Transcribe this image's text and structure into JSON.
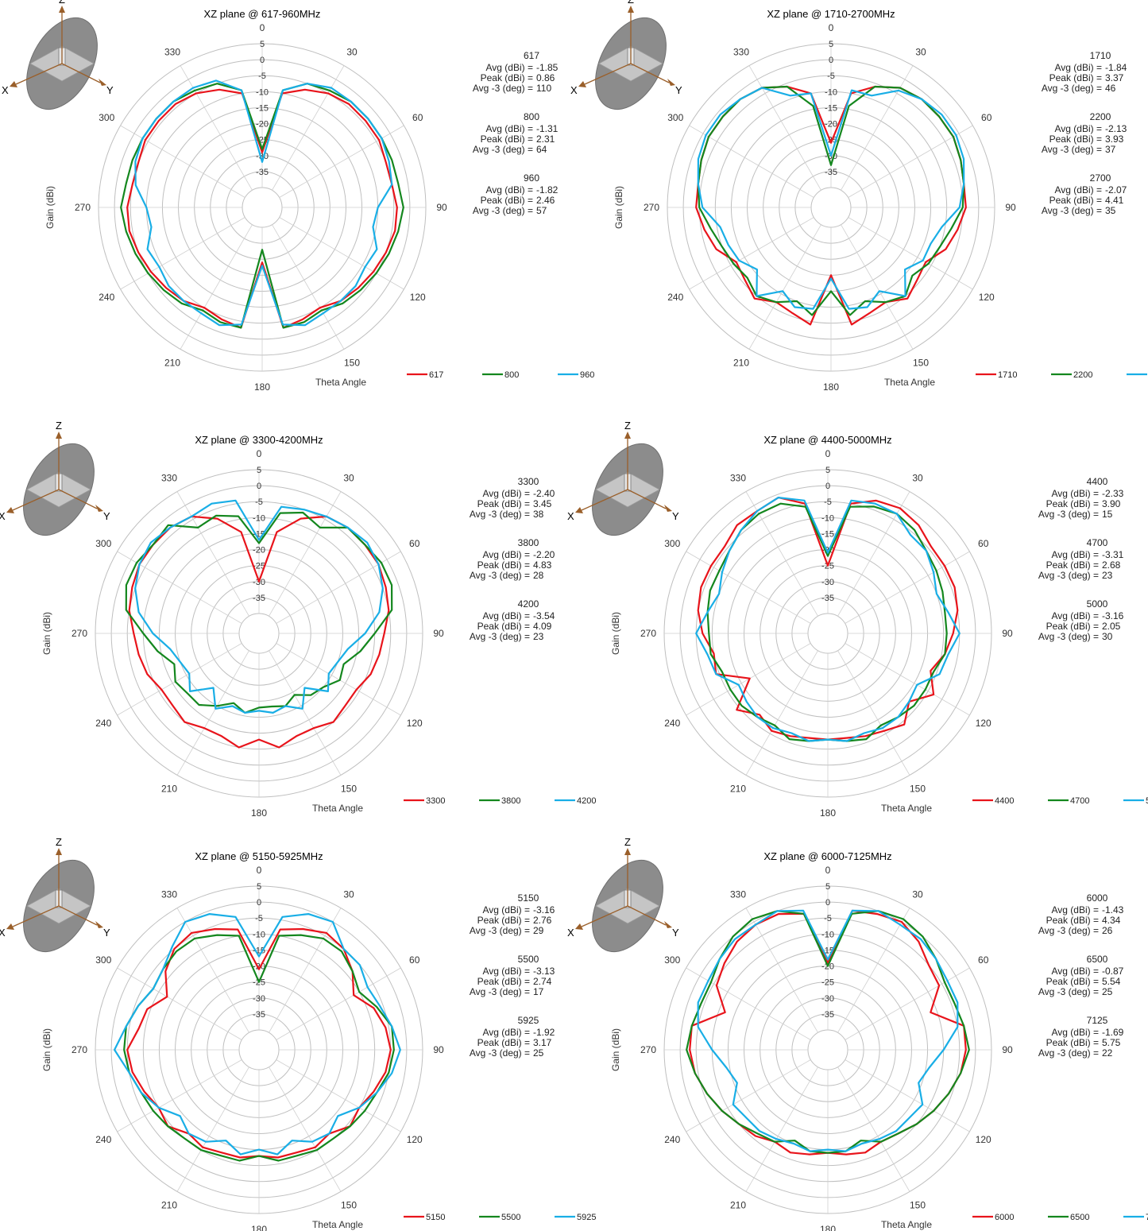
{
  "colors": {
    "series": [
      "#e8141b",
      "#14871e",
      "#19aee6"
    ],
    "grid": "#bfbfbf"
  },
  "common": {
    "ylabel": "Gain  (dBi)",
    "xlabel": "Theta  Angle",
    "radial_ticks": [
      "5",
      "0",
      "-5",
      "-10",
      "-15",
      "-20",
      "-25",
      "-30",
      "-35"
    ],
    "angle_labels": [
      "0",
      "30",
      "60",
      "90",
      "120",
      "150",
      "180",
      "210",
      "240",
      "270",
      "300",
      "330"
    ],
    "stat_labels": [
      "Avg (dBi) =",
      "Peak (dBi) =",
      "Avg -3 (deg) ="
    ],
    "axis_icon_labels": [
      "Z",
      "X",
      "Y"
    ],
    "icon": "xz-plane-orientation-icon"
  },
  "chart_data": [
    {
      "type": "polar-line",
      "title": "XZ plane @ 617-960MHz",
      "rlim": [
        -40,
        5
      ],
      "theta_step_deg": 10,
      "series": [
        {
          "name": "617",
          "stats": [
            "-1.85",
            "0.86",
            "110"
          ],
          "values": [
            -29,
            -10,
            -7,
            -5,
            -4,
            -4,
            -4,
            -5,
            -5,
            -4,
            -4,
            -5,
            -6,
            -7,
            -8,
            -10,
            -9,
            -8,
            -29,
            -8,
            -9,
            -10,
            -8,
            -7,
            -6,
            -5,
            -4,
            -4,
            -5,
            -5,
            -4,
            -4,
            -4,
            -5,
            -7,
            -10
          ]
        },
        {
          "name": "800",
          "stats": [
            "-1.31",
            "2.31",
            "64"
          ],
          "values": [
            -28,
            -9,
            -5,
            -4,
            -3,
            -3,
            -3,
            -3,
            -3,
            -2,
            -3,
            -4,
            -5,
            -6,
            -7,
            -9,
            -8,
            -8,
            -33,
            -8,
            -8,
            -9,
            -7,
            -6,
            -5,
            -4,
            -3,
            -2,
            -3,
            -3,
            -3,
            -3,
            -3,
            -4,
            -5,
            -9
          ]
        },
        {
          "name": "960",
          "stats": [
            "-1.82",
            "2.46",
            "57"
          ],
          "values": [
            -32,
            -9,
            -5,
            -3,
            -3,
            -3,
            -3,
            -4,
            -5,
            -10,
            -11,
            -8,
            -9,
            -8,
            -8,
            -8,
            -7,
            -9,
            -28,
            -9,
            -7,
            -8,
            -8,
            -8,
            -9,
            -8,
            -11,
            -10,
            -6,
            -4,
            -3,
            -3,
            -3,
            -3,
            -4,
            -9
          ]
        }
      ]
    },
    {
      "type": "polar-line",
      "title": "XZ plane @ 1710-2700MHz",
      "rlim": [
        -40,
        5
      ],
      "theta_step_deg": 10,
      "series": [
        {
          "name": "1710",
          "stats": [
            "-1.84",
            "3.37",
            "46"
          ],
          "values": [
            -26,
            -10,
            -6,
            -3,
            -2,
            -2,
            -2,
            -3,
            -4,
            -4,
            -6,
            -8,
            -12,
            -11,
            -9,
            -12,
            -11,
            -9,
            -25,
            -9,
            -11,
            -12,
            -9,
            -11,
            -12,
            -8,
            -6,
            -4,
            -4,
            -3,
            -2,
            -2,
            -2,
            -3,
            -6,
            -10
          ]
        },
        {
          "name": "2200",
          "stats": [
            "-2.13",
            "3.93",
            "37"
          ],
          "values": [
            -33,
            -14,
            -6,
            -3,
            -2,
            -2,
            -2,
            -3,
            -4,
            -5,
            -8,
            -10,
            -11,
            -13,
            -10,
            -12,
            -15,
            -12,
            -20,
            -12,
            -15,
            -12,
            -10,
            -12,
            -11,
            -10,
            -8,
            -5,
            -4,
            -3,
            -2,
            -2,
            -2,
            -3,
            -6,
            -14
          ]
        },
        {
          "name": "2700",
          "stats": [
            "-2.07",
            "4.41",
            "35"
          ],
          "values": [
            -30,
            -9,
            -9,
            -4,
            -2,
            -1,
            -1,
            -2,
            -4,
            -6,
            -11,
            -13,
            -13,
            -16,
            -10,
            -16,
            -13,
            -14,
            -24,
            -14,
            -13,
            -16,
            -10,
            -16,
            -13,
            -12,
            -11,
            -6,
            -4,
            -2,
            -1,
            -1,
            -2,
            -3,
            -9,
            -10
          ]
        }
      ]
    },
    {
      "type": "polar-line",
      "title": "XZ plane @ 3300-4200MHz",
      "rlim": [
        -40,
        5
      ],
      "theta_step_deg": 10,
      "series": [
        {
          "name": "3300",
          "stats": [
            "-2.40",
            "3.45",
            "38"
          ],
          "values": [
            -30,
            -14,
            -8,
            -4,
            -3,
            -3,
            -3,
            -4,
            -5,
            -7,
            -8,
            -9,
            -11,
            -11,
            -10,
            -12,
            -12,
            -10,
            -13,
            -10,
            -12,
            -12,
            -10,
            -11,
            -11,
            -9,
            -8,
            -7,
            -5,
            -4,
            -3,
            -3,
            -3,
            -4,
            -8,
            -14
          ]
        },
        {
          "name": "3800",
          "stats": [
            "-2.20",
            "4.83",
            "28"
          ],
          "values": [
            -18,
            -8,
            -6,
            -8,
            -3,
            -3,
            -2,
            -2,
            -4,
            -10,
            -14,
            -18,
            -17,
            -20,
            -21,
            -24,
            -22,
            -23,
            -23,
            -21,
            -23,
            -20,
            -17,
            -17,
            -16,
            -18,
            -14,
            -10,
            -4,
            -2,
            -2,
            -3,
            -2,
            -8,
            -7,
            -9
          ]
        },
        {
          "name": "4200",
          "stats": [
            "-3.54",
            "4.09",
            "23"
          ],
          "values": [
            -17,
            -6,
            -5,
            -4,
            -3,
            -2,
            -3,
            -5,
            -8,
            -13,
            -18,
            -20,
            -21,
            -18,
            -24,
            -19,
            -22,
            -21,
            -22,
            -21,
            -22,
            -19,
            -24,
            -18,
            -21,
            -20,
            -18,
            -13,
            -8,
            -5,
            -3,
            -2,
            -3,
            -4,
            -3,
            -4
          ]
        }
      ]
    },
    {
      "type": "polar-line",
      "title": "XZ plane @ 4400-5000MHz",
      "rlim": [
        -40,
        5
      ],
      "theta_step_deg": 10,
      "series": [
        {
          "name": "4400",
          "stats": [
            "-2.33",
            "3.90",
            "15"
          ],
          "values": [
            -25,
            -5,
            -2,
            -1,
            -2,
            -4,
            -4,
            -4,
            -5,
            -7,
            -9,
            -12,
            -8,
            -13,
            -9,
            -11,
            -12,
            -13,
            -13,
            -13,
            -12,
            -11,
            -13,
            -9,
            -18,
            -9,
            -10,
            -7,
            -5,
            -4,
            -4,
            -4,
            -2,
            -2,
            -1,
            -5
          ]
        },
        {
          "name": "4700",
          "stats": [
            "-3.31",
            "2.68",
            "23"
          ],
          "values": [
            -22,
            -6,
            -4,
            -3,
            -4,
            -6,
            -7,
            -8,
            -9,
            -9,
            -9,
            -11,
            -11,
            -11,
            -12,
            -13,
            -11,
            -12,
            -13,
            -12,
            -11,
            -13,
            -12,
            -11,
            -11,
            -11,
            -9,
            -9,
            -8,
            -7,
            -7,
            -6,
            -4,
            -3,
            -3,
            -6
          ]
        },
        {
          "name": "5000",
          "stats": [
            "-3.16",
            "2.05",
            "30"
          ],
          "values": [
            -21,
            -4,
            -3,
            -3,
            -6,
            -6,
            -8,
            -10,
            -8,
            -5,
            -8,
            -9,
            -14,
            -13,
            -12,
            -12,
            -13,
            -12,
            -13,
            -12,
            -13,
            -12,
            -12,
            -13,
            -14,
            -9,
            -8,
            -5,
            -8,
            -10,
            -8,
            -6,
            -4,
            -2,
            -1,
            -4
          ]
        }
      ]
    },
    {
      "type": "polar-line",
      "title": "XZ plane @ 5150-5925MHz",
      "rlim": [
        -40,
        5
      ],
      "theta_step_deg": 10,
      "series": [
        {
          "name": "5150",
          "stats": [
            "-3.16",
            "2.76",
            "29"
          ],
          "values": [
            -21,
            -8,
            -6,
            -4,
            -5,
            -8,
            -12,
            -8,
            -6,
            -5,
            -6,
            -8,
            -10,
            -9,
            -12,
            -11,
            -12,
            -12,
            -13,
            -12,
            -12,
            -11,
            -12,
            -9,
            -10,
            -8,
            -6,
            -5,
            -8,
            -9,
            -13,
            -8,
            -5,
            -4,
            -6,
            -8
          ]
        },
        {
          "name": "5500",
          "stats": [
            "-3.13",
            "2.74",
            "17"
          ],
          "values": [
            -25,
            -10,
            -8,
            -6,
            -6,
            -8,
            -10,
            -7,
            -4,
            -4,
            -5,
            -7,
            -8,
            -9,
            -10,
            -10,
            -11,
            -11,
            -13,
            -11,
            -11,
            -10,
            -10,
            -9,
            -8,
            -7,
            -5,
            -4,
            -4,
            -6,
            -8,
            -7,
            -6,
            -6,
            -8,
            -10
          ]
        },
        {
          "name": "5925",
          "stats": [
            "-1.92",
            "3.17",
            "25"
          ],
          "values": [
            -17,
            -4,
            -1,
            0,
            -5,
            -5,
            -7,
            -6,
            -4,
            -2,
            -4,
            -7,
            -10,
            -14,
            -12,
            -13,
            -16,
            -13,
            -15,
            -13,
            -16,
            -13,
            -12,
            -14,
            -10,
            -7,
            -5,
            -1,
            -4,
            -6,
            -8,
            -7,
            -4,
            0,
            -1,
            -4
          ]
        }
      ]
    },
    {
      "type": "polar-line",
      "title": "XZ plane @ 6000-7125MHz",
      "rlim": [
        -40,
        5
      ],
      "theta_step_deg": 10,
      "series": [
        {
          "name": "6000",
          "stats": [
            "-1.43",
            "4.34",
            "26"
          ],
          "values": [
            -19,
            -2,
            -1,
            0,
            -2,
            -5,
            -6,
            -12,
            -3,
            -3,
            -4,
            -6,
            -8,
            -10,
            -12,
            -13,
            -12,
            -13,
            -14,
            -13,
            -12,
            -13,
            -11,
            -10,
            -8,
            -6,
            -4,
            -3,
            -3,
            -12,
            -6,
            -4,
            -2,
            -1,
            -1,
            -3
          ]
        },
        {
          "name": "6500",
          "stats": [
            "-0.87",
            "5.54",
            "25"
          ],
          "values": [
            -20,
            -3,
            0,
            1,
            0,
            -2,
            -4,
            -4,
            -3,
            -2,
            -4,
            -6,
            -8,
            -10,
            -12,
            -13,
            -16,
            -14,
            -14,
            -14,
            -16,
            -13,
            -12,
            -10,
            -8,
            -6,
            -4,
            -2,
            -3,
            -4,
            -4,
            -2,
            0,
            1,
            0,
            -3
          ]
        },
        {
          "name": "7125",
          "stats": [
            "-1.69",
            "5.75",
            "22"
          ],
          "values": [
            -18,
            -2,
            0,
            -1,
            -1,
            -2,
            -3,
            -3,
            -5,
            -10,
            -14,
            -16,
            -12,
            -13,
            -13,
            -14,
            -15,
            -14,
            -15,
            -14,
            -15,
            -14,
            -13,
            -13,
            -12,
            -16,
            -14,
            -10,
            -5,
            -3,
            -3,
            -2,
            -1,
            -1,
            0,
            -2
          ]
        }
      ]
    }
  ]
}
